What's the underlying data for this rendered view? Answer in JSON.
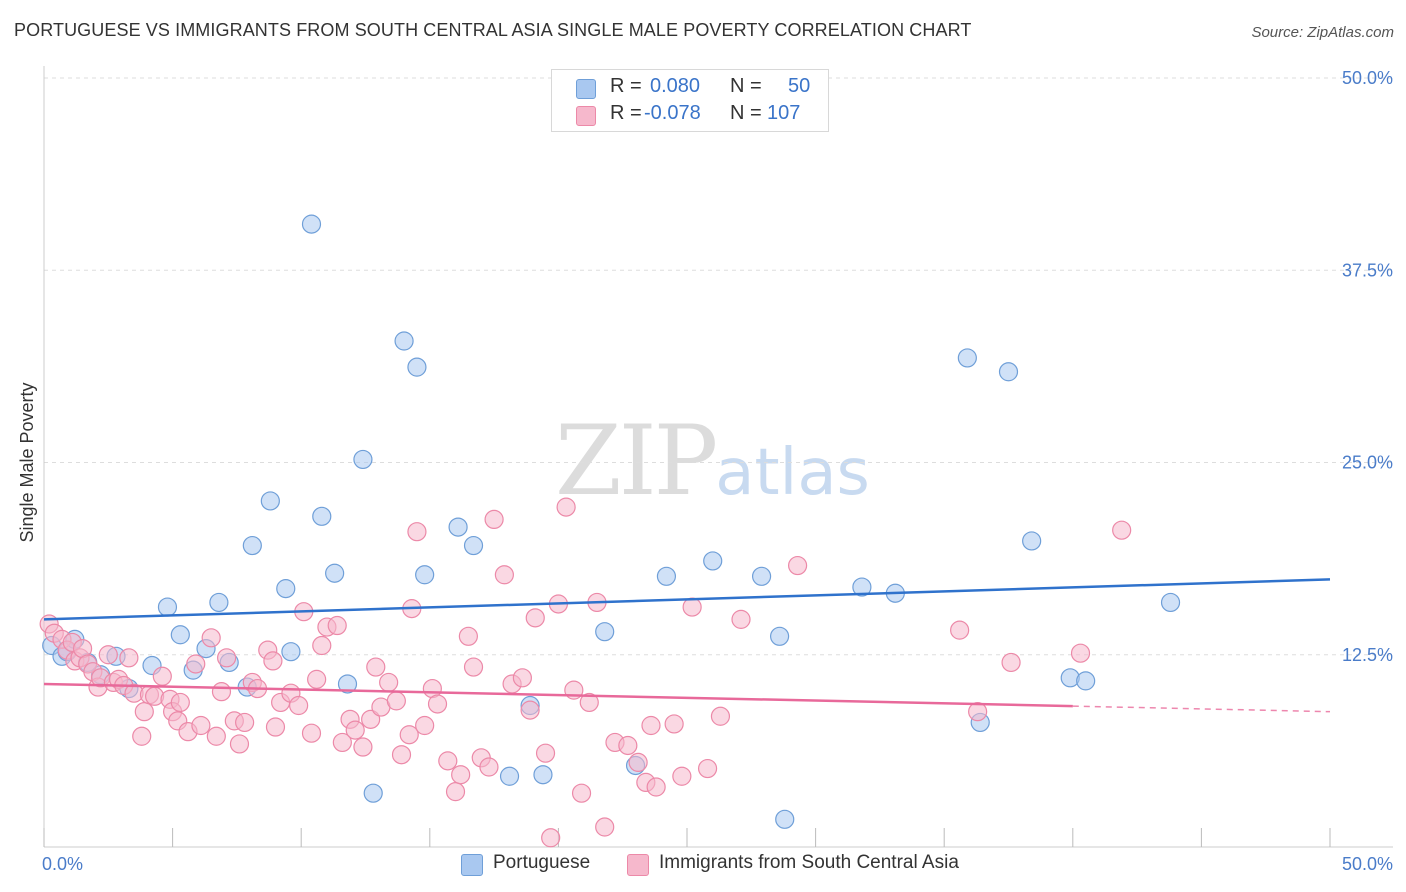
{
  "title": "PORTUGUESE VS IMMIGRANTS FROM SOUTH CENTRAL ASIA SINGLE MALE POVERTY CORRELATION CHART",
  "source": "Source: ZipAtlas.com",
  "watermark": {
    "zip": "ZIP",
    "atlas": "atlas"
  },
  "legend": {
    "rows": [
      {
        "r_label": "R =",
        "r_value": "0.080",
        "n_label": "N =",
        "n_value": "50",
        "color": "#a9c8f0"
      },
      {
        "r_label": "R =",
        "r_value": "-0.078",
        "n_label": "N =",
        "n_value": "107",
        "color": "#f6b8cc"
      }
    ]
  },
  "bottom_legend": [
    "Portuguese",
    "Immigrants from South Central Asia"
  ],
  "chart_data": {
    "type": "scatter",
    "title": "PORTUGUESE VS IMMIGRANTS FROM SOUTH CENTRAL ASIA SINGLE MALE POVERTY CORRELATION CHART",
    "xlabel": "",
    "ylabel": "Single Male Poverty",
    "xlim": [
      0,
      50
    ],
    "ylim": [
      0,
      50
    ],
    "x_tick_labels": [
      "0.0%",
      "50.0%"
    ],
    "y_tick_labels": [
      "12.5%",
      "25.0%",
      "37.5%",
      "50.0%"
    ],
    "y_ticks": [
      12.5,
      25.0,
      37.5,
      50.0
    ],
    "grid": true,
    "legend_position": "top-center",
    "series": [
      {
        "name": "Portuguese",
        "color": "#a9c8f0",
        "stroke": "#6f9fd8",
        "line_color": "#2f72cc",
        "r": 0.08,
        "n": 50,
        "trend": {
          "x": [
            0,
            50
          ],
          "y": [
            14.8,
            17.4
          ],
          "dash_from": null
        },
        "points": [
          [
            0.3,
            13.1
          ],
          [
            0.7,
            12.4
          ],
          [
            1.7,
            12.0
          ],
          [
            2.2,
            11.2
          ],
          [
            2.8,
            12.4
          ],
          [
            3.3,
            10.3
          ],
          [
            4.2,
            11.8
          ],
          [
            4.8,
            15.6
          ],
          [
            5.3,
            13.8
          ],
          [
            5.8,
            11.5
          ],
          [
            6.3,
            12.9
          ],
          [
            6.8,
            15.9
          ],
          [
            7.2,
            12.0
          ],
          [
            7.9,
            10.4
          ],
          [
            8.1,
            19.6
          ],
          [
            8.8,
            22.5
          ],
          [
            9.4,
            16.8
          ],
          [
            9.6,
            12.7
          ],
          [
            10.4,
            40.5
          ],
          [
            10.8,
            21.5
          ],
          [
            11.3,
            17.8
          ],
          [
            11.8,
            10.6
          ],
          [
            12.4,
            25.2
          ],
          [
            12.8,
            3.5
          ],
          [
            14.0,
            32.9
          ],
          [
            14.5,
            31.2
          ],
          [
            14.8,
            17.7
          ],
          [
            16.1,
            20.8
          ],
          [
            16.7,
            19.6
          ],
          [
            18.1,
            4.6
          ],
          [
            18.9,
            9.2
          ],
          [
            19.4,
            4.7
          ],
          [
            21.8,
            14.0
          ],
          [
            23.0,
            5.3
          ],
          [
            24.2,
            17.6
          ],
          [
            26.0,
            18.6
          ],
          [
            27.9,
            17.6
          ],
          [
            28.8,
            1.8
          ],
          [
            28.6,
            13.7
          ],
          [
            31.8,
            16.9
          ],
          [
            33.1,
            16.5
          ],
          [
            35.9,
            31.8
          ],
          [
            36.4,
            8.1
          ],
          [
            37.5,
            30.9
          ],
          [
            38.4,
            19.9
          ],
          [
            39.9,
            11.0
          ],
          [
            40.5,
            10.8
          ],
          [
            43.8,
            15.9
          ],
          [
            0.9,
            12.7
          ],
          [
            1.2,
            13.5
          ]
        ]
      },
      {
        "name": "Immigrants from South Central Asia",
        "color": "#f6b8cc",
        "stroke": "#ec89a8",
        "line_color": "#e8699a",
        "r": -0.078,
        "n": 107,
        "trend": {
          "x": [
            0,
            50
          ],
          "y": [
            10.6,
            8.8
          ],
          "dash_from": 40.0
        },
        "points": [
          [
            0.2,
            14.5
          ],
          [
            0.4,
            13.9
          ],
          [
            0.7,
            13.5
          ],
          [
            0.9,
            12.8
          ],
          [
            1.1,
            13.3
          ],
          [
            1.2,
            12.1
          ],
          [
            1.4,
            12.3
          ],
          [
            1.5,
            12.9
          ],
          [
            1.7,
            11.9
          ],
          [
            1.9,
            11.4
          ],
          [
            2.1,
            10.4
          ],
          [
            2.2,
            11.0
          ],
          [
            2.5,
            12.5
          ],
          [
            2.7,
            10.7
          ],
          [
            2.9,
            10.9
          ],
          [
            3.1,
            10.5
          ],
          [
            3.3,
            12.3
          ],
          [
            3.5,
            10.0
          ],
          [
            3.8,
            7.2
          ],
          [
            3.9,
            8.8
          ],
          [
            4.1,
            9.9
          ],
          [
            4.3,
            9.8
          ],
          [
            4.6,
            11.1
          ],
          [
            4.9,
            9.6
          ],
          [
            5.0,
            8.8
          ],
          [
            5.2,
            8.2
          ],
          [
            5.6,
            7.5
          ],
          [
            5.9,
            11.9
          ],
          [
            6.1,
            7.9
          ],
          [
            6.5,
            13.6
          ],
          [
            6.7,
            7.2
          ],
          [
            6.9,
            10.1
          ],
          [
            7.1,
            12.3
          ],
          [
            7.4,
            8.2
          ],
          [
            7.6,
            6.7
          ],
          [
            7.8,
            8.1
          ],
          [
            8.1,
            10.7
          ],
          [
            8.3,
            10.3
          ],
          [
            8.7,
            12.8
          ],
          [
            8.9,
            12.1
          ],
          [
            9.0,
            7.8
          ],
          [
            9.2,
            9.4
          ],
          [
            9.6,
            10.0
          ],
          [
            9.9,
            9.2
          ],
          [
            10.1,
            15.3
          ],
          [
            10.4,
            7.4
          ],
          [
            10.6,
            10.9
          ],
          [
            10.8,
            13.1
          ],
          [
            11.0,
            14.3
          ],
          [
            11.4,
            14.4
          ],
          [
            11.6,
            6.8
          ],
          [
            11.9,
            8.3
          ],
          [
            12.1,
            7.6
          ],
          [
            12.4,
            6.5
          ],
          [
            12.7,
            8.3
          ],
          [
            12.9,
            11.7
          ],
          [
            13.1,
            9.1
          ],
          [
            13.4,
            10.7
          ],
          [
            13.7,
            9.5
          ],
          [
            13.9,
            6.0
          ],
          [
            14.2,
            7.3
          ],
          [
            14.3,
            15.5
          ],
          [
            14.5,
            20.5
          ],
          [
            14.8,
            7.9
          ],
          [
            15.1,
            10.3
          ],
          [
            15.3,
            9.3
          ],
          [
            15.7,
            5.6
          ],
          [
            16.0,
            3.6
          ],
          [
            16.2,
            4.7
          ],
          [
            16.5,
            13.7
          ],
          [
            16.7,
            11.7
          ],
          [
            17.0,
            5.8
          ],
          [
            17.3,
            5.2
          ],
          [
            17.5,
            21.3
          ],
          [
            17.9,
            17.7
          ],
          [
            18.2,
            10.6
          ],
          [
            18.6,
            11.0
          ],
          [
            18.9,
            8.9
          ],
          [
            19.1,
            14.9
          ],
          [
            19.5,
            6.1
          ],
          [
            19.7,
            0.6
          ],
          [
            20.0,
            15.8
          ],
          [
            20.3,
            22.1
          ],
          [
            20.6,
            10.2
          ],
          [
            20.9,
            3.5
          ],
          [
            21.2,
            9.4
          ],
          [
            21.5,
            15.9
          ],
          [
            21.8,
            1.3
          ],
          [
            22.2,
            6.8
          ],
          [
            22.7,
            6.6
          ],
          [
            23.1,
            5.5
          ],
          [
            23.4,
            4.2
          ],
          [
            23.6,
            7.9
          ],
          [
            23.8,
            3.9
          ],
          [
            24.5,
            8.0
          ],
          [
            24.8,
            4.6
          ],
          [
            25.2,
            15.6
          ],
          [
            25.8,
            5.1
          ],
          [
            26.3,
            8.5
          ],
          [
            27.1,
            14.8
          ],
          [
            29.3,
            18.3
          ],
          [
            35.6,
            14.1
          ],
          [
            36.3,
            8.8
          ],
          [
            37.6,
            12.0
          ],
          [
            40.3,
            12.6
          ],
          [
            41.9,
            20.6
          ],
          [
            5.3,
            9.4
          ]
        ]
      }
    ]
  }
}
